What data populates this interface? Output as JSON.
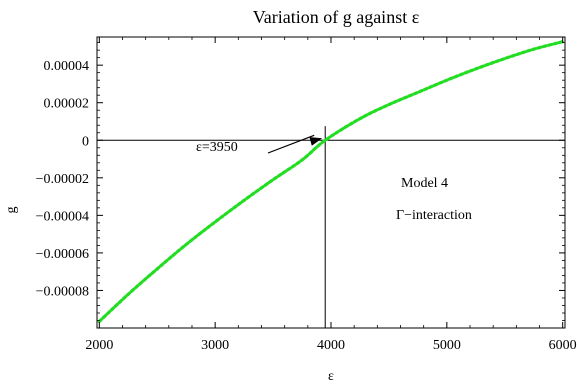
{
  "chart_data": {
    "type": "line",
    "title": "Variation of g against ε",
    "xlabel": "ε",
    "ylabel": "g",
    "xlim": [
      1980,
      6020
    ],
    "ylim": [
      -0.0001,
      5.5e-05
    ],
    "x_ticks": [
      2000,
      3000,
      4000,
      5000,
      6000
    ],
    "x_tick_labels": [
      "2000",
      "3000",
      "4000",
      "5000",
      "6000"
    ],
    "y_ticks": [
      4e-05,
      2e-05,
      0,
      -2e-05,
      -4e-05,
      -6e-05,
      -8e-05
    ],
    "y_tick_labels": [
      "0.00004",
      "0.00002",
      "0",
      "−0.00002",
      "−0.00004",
      "−0.00006",
      "−0.00008"
    ],
    "grid": false,
    "series": [
      {
        "color": "#22dd22",
        "style": "dotted",
        "x": [
          2000,
          2250,
          2500,
          2750,
          3000,
          3250,
          3500,
          3750,
          3950,
          4250,
          4500,
          4750,
          5000,
          5250,
          5500,
          5750,
          6000
        ],
        "y": [
          -9.65e-05,
          -8.2e-05,
          -6.85e-05,
          -5.55e-05,
          -4.35e-05,
          -3.2e-05,
          -2.1e-05,
          -1.05e-05,
          0,
          1.15e-05,
          1.9e-05,
          2.55e-05,
          3.2e-05,
          3.8e-05,
          4.35e-05,
          4.85e-05,
          5.25e-05
        ]
      }
    ],
    "annotations": [
      {
        "text": "ε=3950",
        "arrow_to": [
          3950,
          0
        ]
      },
      {
        "text": "Model 4"
      },
      {
        "text": "Γ−interaction"
      }
    ],
    "reference_lines": [
      {
        "orientation": "horizontal",
        "value": 0
      },
      {
        "orientation": "vertical",
        "value": 3950
      }
    ]
  }
}
